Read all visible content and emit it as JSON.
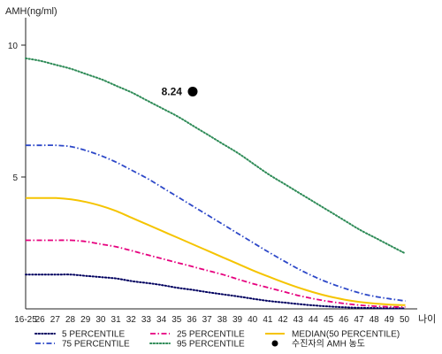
{
  "chart_data": {
    "type": "line",
    "ylabel": "AMH(ng/ml)",
    "xlabel": "나이",
    "ylim": [
      0,
      10.5
    ],
    "y_ticks": [
      5,
      10
    ],
    "x_ticks": [
      "16-25",
      "26",
      "27",
      "28",
      "29",
      "30",
      "31",
      "32",
      "33",
      "34",
      "35",
      "36",
      "37",
      "38",
      "39",
      "40",
      "41",
      "42",
      "43",
      "44",
      "45",
      "46",
      "47",
      "48",
      "49",
      "50"
    ],
    "grid": false,
    "legend_position": "bottom",
    "series": [
      {
        "name": "5 PERCENTILE",
        "color": "#00005f",
        "style": "dotted",
        "values": [
          1.3,
          1.3,
          1.3,
          1.3,
          1.25,
          1.2,
          1.15,
          1.05,
          0.98,
          0.9,
          0.8,
          0.72,
          0.63,
          0.55,
          0.47,
          0.38,
          0.3,
          0.24,
          0.18,
          0.13,
          0.09,
          0.06,
          0.04,
          0.03,
          0.02,
          0.02
        ]
      },
      {
        "name": "25 PERCENTILE",
        "color": "#e6007e",
        "style": "dashdot",
        "values": [
          2.6,
          2.6,
          2.6,
          2.6,
          2.55,
          2.45,
          2.35,
          2.2,
          2.05,
          1.9,
          1.75,
          1.6,
          1.45,
          1.3,
          1.12,
          0.95,
          0.8,
          0.65,
          0.5,
          0.38,
          0.28,
          0.2,
          0.14,
          0.1,
          0.08,
          0.07
        ]
      },
      {
        "name": "MEDIAN(50 PERCENTILE)",
        "color": "#f5c400",
        "style": "solid",
        "values": [
          4.2,
          4.2,
          4.2,
          4.15,
          4.05,
          3.9,
          3.7,
          3.45,
          3.2,
          2.95,
          2.7,
          2.45,
          2.2,
          1.95,
          1.7,
          1.45,
          1.22,
          1.0,
          0.8,
          0.62,
          0.47,
          0.35,
          0.26,
          0.2,
          0.16,
          0.14
        ]
      },
      {
        "name": "75 PERCENTILE",
        "color": "#2d48c8",
        "style": "dashdot",
        "values": [
          6.2,
          6.2,
          6.2,
          6.15,
          6.0,
          5.8,
          5.55,
          5.25,
          4.95,
          4.6,
          4.25,
          3.9,
          3.55,
          3.2,
          2.85,
          2.5,
          2.15,
          1.82,
          1.5,
          1.22,
          0.98,
          0.78,
          0.6,
          0.47,
          0.38,
          0.3
        ]
      },
      {
        "name": "95 PERCENTILE",
        "color": "#2e8b57",
        "style": "dotted",
        "values": [
          9.5,
          9.4,
          9.25,
          9.1,
          8.9,
          8.7,
          8.45,
          8.2,
          7.9,
          7.6,
          7.3,
          6.95,
          6.6,
          6.25,
          5.9,
          5.5,
          5.1,
          4.75,
          4.4,
          4.05,
          3.7,
          3.35,
          3.0,
          2.7,
          2.4,
          2.1
        ]
      }
    ],
    "marker": {
      "name": "수진자의 AMH 농도",
      "x": "36",
      "y": 8.24,
      "label": "8.24",
      "color": "#000000"
    }
  }
}
